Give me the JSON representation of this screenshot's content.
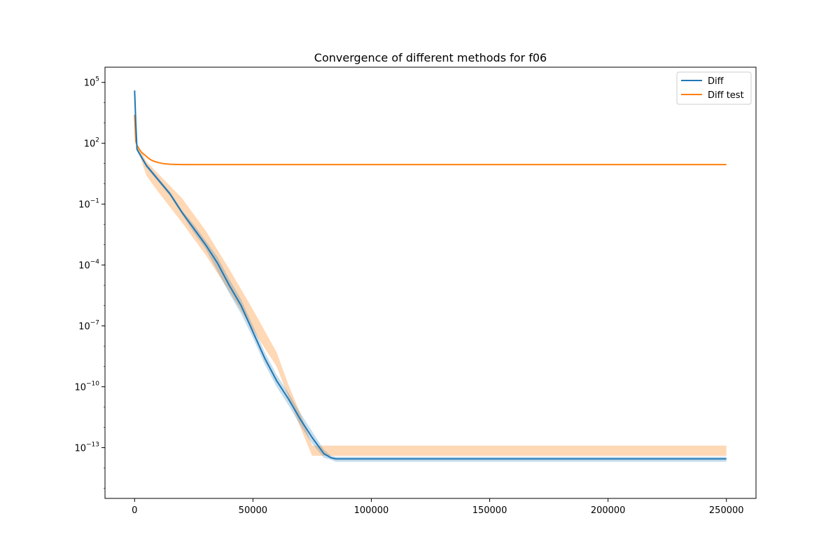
{
  "chart_data": {
    "type": "line",
    "title": "Convergence of different methods for f06",
    "xlabel": "",
    "ylabel": "",
    "xlim": [
      -12500,
      262500
    ],
    "ylim_log10": [
      -15.5,
      5.75
    ],
    "yscale": "log",
    "grid": false,
    "legend_position": "top-right",
    "x_ticks": [
      0,
      50000,
      100000,
      150000,
      200000,
      250000
    ],
    "x_tick_labels": [
      "0",
      "50000",
      "100000",
      "150000",
      "200000",
      "250000"
    ],
    "y_ticks_log10": [
      5,
      2,
      -1,
      -4,
      -7,
      -10,
      -13
    ],
    "y_tick_labels": [
      {
        "base": "10",
        "exp": "5"
      },
      {
        "base": "10",
        "exp": "2"
      },
      {
        "base": "10",
        "exp": "−1"
      },
      {
        "base": "10",
        "exp": "−4"
      },
      {
        "base": "10",
        "exp": "−7"
      },
      {
        "base": "10",
        "exp": "−10"
      },
      {
        "base": "10",
        "exp": "−13"
      }
    ],
    "series": [
      {
        "name": "Diff",
        "color": "#1f77b4",
        "band_color": "#1f77b4",
        "band_opacity": 0.25,
        "x": [
          0,
          500,
          1000,
          5000,
          10000,
          15000,
          20000,
          25000,
          30000,
          35000,
          40000,
          45000,
          50000,
          55000,
          60000,
          65000,
          70000,
          75000,
          80000,
          83000,
          85000,
          100000,
          150000,
          200000,
          250000
        ],
        "log10_y": [
          4.6,
          3.0,
          1.7,
          0.9,
          0.2,
          -0.5,
          -1.4,
          -2.2,
          -3.0,
          -3.9,
          -5.0,
          -6.0,
          -7.3,
          -8.6,
          -9.7,
          -10.6,
          -11.6,
          -12.5,
          -13.3,
          -13.5,
          -13.55,
          -13.55,
          -13.55,
          -13.55,
          -13.55
        ],
        "band_log10_low": [
          4.5,
          2.9,
          1.6,
          0.8,
          0.1,
          -0.6,
          -1.5,
          -2.4,
          -3.2,
          -4.3,
          -5.4,
          -6.4,
          -7.6,
          -8.9,
          -10.0,
          -10.9,
          -11.9,
          -12.8,
          -13.5,
          -13.6,
          -13.7,
          -13.7,
          -13.7,
          -13.7,
          -13.7
        ],
        "band_log10_high": [
          4.7,
          3.1,
          1.8,
          1.0,
          0.3,
          -0.4,
          -1.3,
          -2.0,
          -2.8,
          -3.6,
          -4.7,
          -5.7,
          -7.0,
          -8.3,
          -9.4,
          -10.3,
          -11.3,
          -12.2,
          -13.1,
          -13.4,
          -13.45,
          -13.45,
          -13.45,
          -13.45,
          -13.45
        ]
      },
      {
        "name": "Diff test",
        "color": "#ff7f0e",
        "band_color": "#ff7f0e",
        "band_opacity": 0.3,
        "x": [
          0,
          500,
          1000,
          2000,
          3000,
          4000,
          5000,
          6000,
          7000,
          8000,
          10000,
          12000,
          15000,
          20000,
          30000,
          50000,
          100000,
          150000,
          200000,
          250000
        ],
        "log10_y": [
          3.4,
          2.1,
          1.9,
          1.7,
          1.55,
          1.45,
          1.35,
          1.25,
          1.18,
          1.12,
          1.05,
          1.0,
          0.97,
          0.95,
          0.95,
          0.95,
          0.95,
          0.95,
          0.95,
          0.95
        ],
        "band_x": [
          0,
          1000,
          5000,
          10000,
          20000,
          30000,
          40000,
          50000,
          60000,
          65000,
          70000,
          75000,
          100000,
          150000,
          200000,
          250000
        ],
        "band_log10_low": [
          3.3,
          1.8,
          0.4,
          -0.4,
          -1.9,
          -3.5,
          -5.3,
          -7.2,
          -9.0,
          -10.5,
          -12.0,
          -13.4,
          -13.4,
          -13.4,
          -13.4,
          -13.4
        ],
        "band_log10_high": [
          3.5,
          2.0,
          1.1,
          0.5,
          -0.7,
          -2.3,
          -4.2,
          -6.2,
          -8.3,
          -9.9,
          -11.3,
          -12.9,
          -12.9,
          -12.9,
          -12.9,
          -12.9
        ]
      }
    ]
  }
}
